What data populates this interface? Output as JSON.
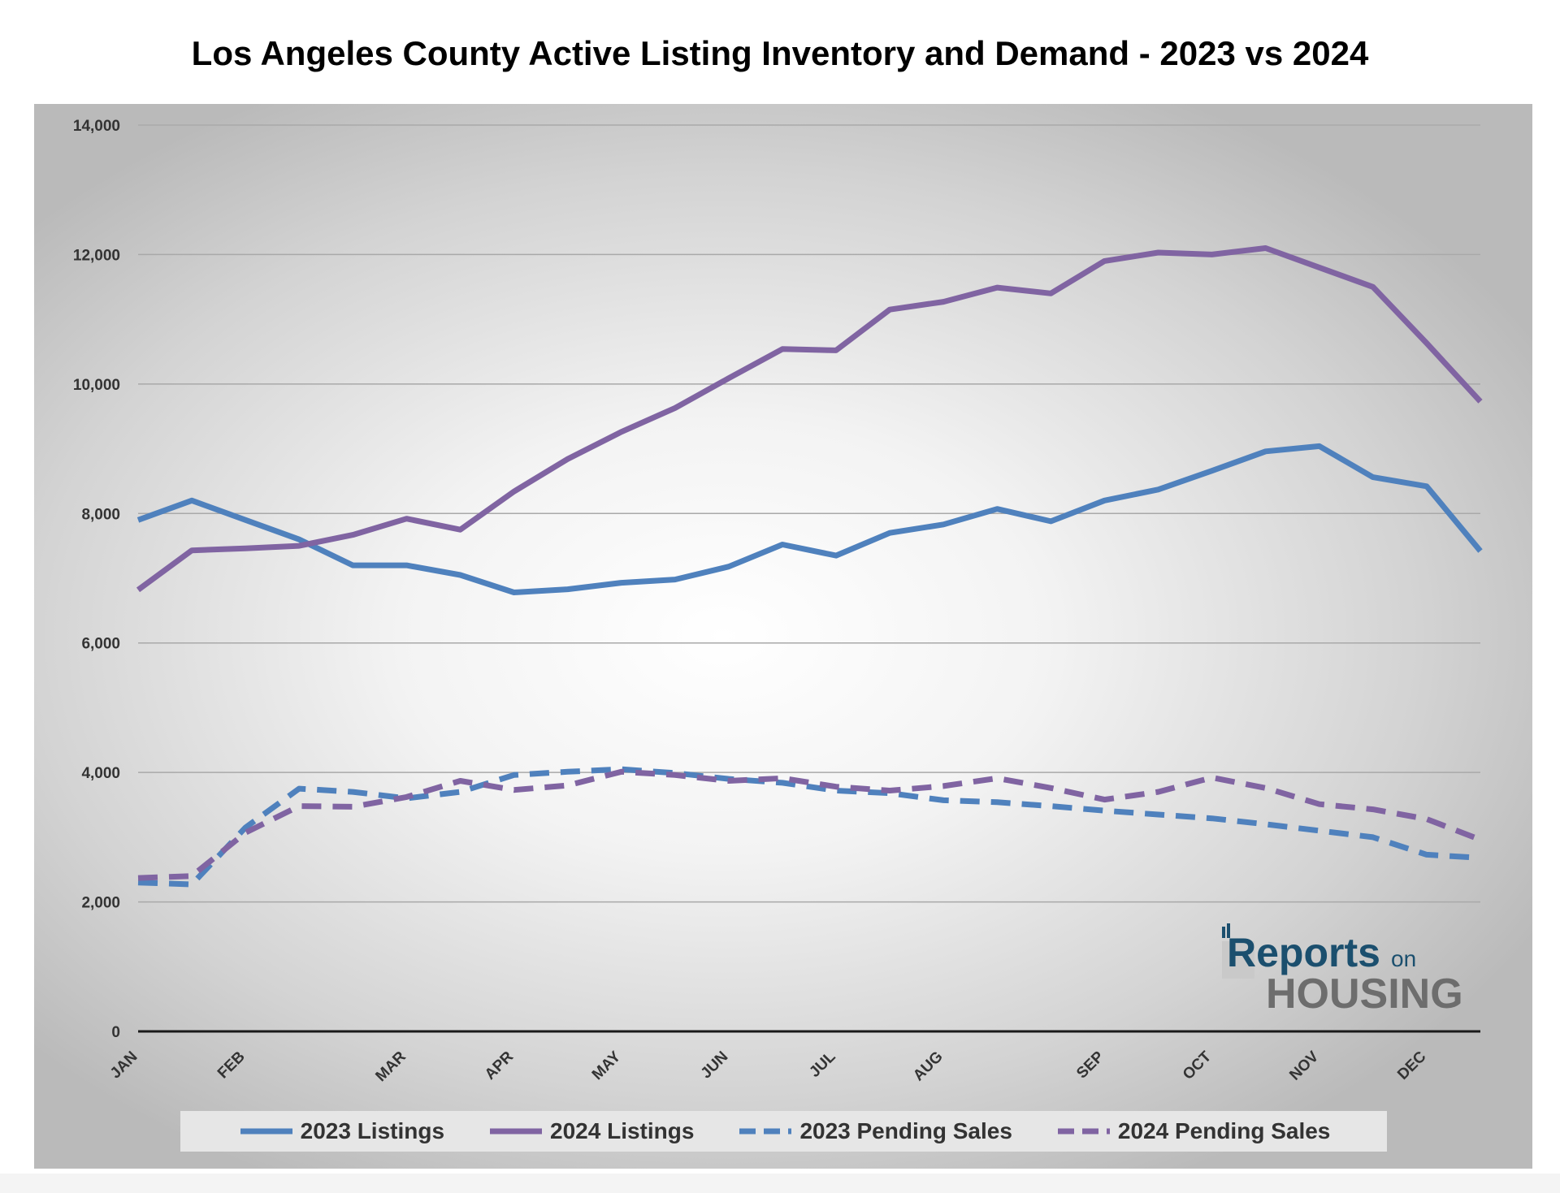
{
  "chart_data": {
    "type": "line",
    "title": "Los Angeles County Active Listing Inventory and Demand - 2023 vs 2024",
    "xlabel": "",
    "ylabel": "",
    "ylim": [
      0,
      14000
    ],
    "yticks": [
      0,
      2000,
      4000,
      6000,
      8000,
      10000,
      12000,
      14000
    ],
    "ytick_labels": [
      "0",
      "2,000",
      "4,000",
      "6,000",
      "8,000",
      "10,000",
      "12,000",
      "14,000"
    ],
    "x_month_labels": [
      {
        "label": "JAN",
        "week": 0
      },
      {
        "label": "FEB",
        "week": 2
      },
      {
        "label": "MAR",
        "week": 5
      },
      {
        "label": "APR",
        "week": 7
      },
      {
        "label": "MAY",
        "week": 9
      },
      {
        "label": "JUN",
        "week": 11
      },
      {
        "label": "JUL",
        "week": 13
      },
      {
        "label": "AUG",
        "week": 15
      },
      {
        "label": "SEP",
        "week": 18
      },
      {
        "label": "OCT",
        "week": 20
      },
      {
        "label": "NOV",
        "week": 22
      },
      {
        "label": "DEC",
        "week": 24
      }
    ],
    "x_count": 26,
    "grid": true,
    "legend_position": "bottom",
    "series": [
      {
        "name": "2023 Listings",
        "color": "#4F81BD",
        "dash": false,
        "values": [
          7900,
          8200,
          7900,
          7600,
          7200,
          7200,
          7050,
          6780,
          6830,
          6930,
          6980,
          7180,
          7520,
          7350,
          7700,
          7830,
          8070,
          7880,
          8200,
          8370,
          8660,
          8960,
          9040,
          8560,
          8420,
          7420
        ]
      },
      {
        "name": "2024 Listings",
        "color": "#8064A2",
        "dash": false,
        "values": [
          6820,
          7430,
          7460,
          7500,
          7670,
          7920,
          7750,
          8340,
          8840,
          9260,
          9630,
          10090,
          10540,
          10520,
          11150,
          11270,
          11490,
          11400,
          11900,
          12030,
          12000,
          12100,
          11800,
          11500,
          10630,
          9730
        ]
      },
      {
        "name": "2023 Pending Sales",
        "color": "#4F81BD",
        "dash": true,
        "values": [
          2300,
          2270,
          3150,
          3750,
          3700,
          3600,
          3700,
          3960,
          4010,
          4050,
          3990,
          3900,
          3840,
          3720,
          3680,
          3570,
          3540,
          3480,
          3410,
          3350,
          3290,
          3200,
          3100,
          3000,
          2730,
          2680
        ]
      },
      {
        "name": "2024 Pending Sales",
        "color": "#8064A2",
        "dash": true,
        "values": [
          2370,
          2400,
          3070,
          3480,
          3470,
          3620,
          3870,
          3730,
          3800,
          4010,
          3960,
          3870,
          3910,
          3780,
          3720,
          3790,
          3910,
          3760,
          3580,
          3700,
          3920,
          3760,
          3510,
          3430,
          3280,
          2960
        ]
      }
    ]
  },
  "logo": {
    "line1": "Reports",
    "line1_small": "on",
    "line2": "HOUSING"
  }
}
